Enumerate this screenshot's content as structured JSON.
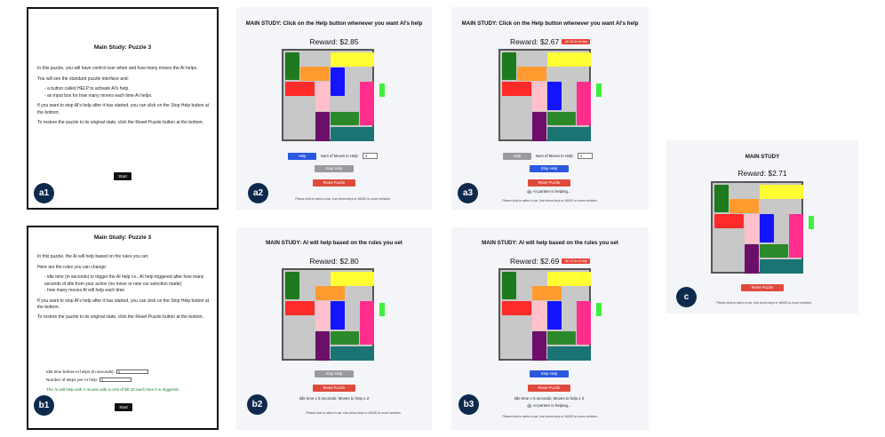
{
  "a1": {
    "title": "Main Study: Puzzle 3",
    "p1": "In this puzzle, you will have control over when and how many moves the AI helps.",
    "p2": "You will see the standard puzzle interface and:",
    "bullet1": "- a button called HELP to activate AI's help",
    "bullet2": "- an input box for how many moves each time AI helps.",
    "p3": "If you want to stop AI's help after it has started, you can click on the Stop Help button at the bottom.",
    "p4": "To restore the puzzle to its original state, click the Reset Puzzle button at the bottom.",
    "start": "Start",
    "tag": "a1"
  },
  "b1": {
    "title": "Main Study: Puzzle 3",
    "p1": "In this puzzle, the AI will help based on the rules you set.",
    "p2": "Here are the rules you can change:",
    "bullet1": "- idle time (in seconds) to trigger the AI help i.e., AI help triggered after how many seconds of idle from your action (no move or new car selection made)",
    "bullet2": "- how many moves AI will help each time",
    "p3": "If you want to stop AI's help after it has started, you can click on the Stop Help button at the bottom.",
    "p4": "To restore the puzzle to its original state, click the Reset Puzzle button at the bottom.",
    "idle_label": "Idle time before AI helps (in seconds):",
    "idle_value": "5",
    "steps_label": "Number of steps per AI help:",
    "steps_value": "2",
    "note": "The AI will help with 2 moves with a cost of $0.10 each time it is triggered.",
    "start": "Start",
    "tag": "b1"
  },
  "a2": {
    "title": "MAIN STUDY: Click on the Help button whenever you want AI's help",
    "reward": "Reward: $2.85",
    "help": "Help",
    "moves_label": "Num of Moves to Help:",
    "moves_value": "3",
    "stop": "Stop Help",
    "reset": "Reset Puzzle",
    "footer": "Please click to select a car. Use Arrow keys or WASD to move vehicles.",
    "tag": "a2"
  },
  "a3": {
    "title": "MAIN STUDY: Click on the Help button whenever you want AI's help",
    "reward": "Reward: $2.67",
    "badge": "-$0.18 for AI help",
    "help": "Help",
    "moves_label": "Num of Moves to Help:",
    "moves_value": "3",
    "stop": "Stop Help",
    "reset": "Reset Puzzle",
    "helping": "🤖 AI partner is helping...",
    "footer": "Please click to select a car. Use Arrow keys or WASD to move vehicles.",
    "tag": "a3"
  },
  "b2": {
    "title": "MAIN STUDY: AI will help based on the rules you set",
    "reward": "Reward: $2.80",
    "stop": "Stop Help",
    "reset": "Reset Puzzle",
    "rules": "Idle time ≤ 5 seconds; Moves to help ≤ 2",
    "footer": "Please click to select a car. Use Arrow keys or WASD to move vehicles.",
    "tag": "b2"
  },
  "b3": {
    "title": "MAIN STUDY: AI will help based on the rules you set",
    "reward": "Reward: $2.69",
    "badge": "-$0.10 for AI help",
    "stop": "Stop Help",
    "reset": "Reset Puzzle",
    "rules": "Idle time ≤ 5 seconds; Moves to help ≤ 2",
    "helping": "🤖 AI partner is helping...",
    "footer": "Please click to select a car. Use Arrow keys or WASD to move vehicles.",
    "tag": "b3"
  },
  "c": {
    "title": "MAIN STUDY",
    "reward": "Reward: $2.71",
    "reset": "Reset Puzzle",
    "footer": "Please click to select a car. Use Arrow keys or WASD to move vehicles.",
    "tag": "c"
  },
  "colors": {
    "dark_green": "#1e7a1e",
    "orange": "#ff9a2e",
    "yellow": "#ffff33",
    "red": "#ff2a2a",
    "blue": "#1414ff",
    "pink_light": "#ffc0cb",
    "pink": "#ff2d8c",
    "purple": "#6b0f6b",
    "green": "#2a8a2a",
    "teal": "#1a7474",
    "exit": "#3ef03a"
  }
}
